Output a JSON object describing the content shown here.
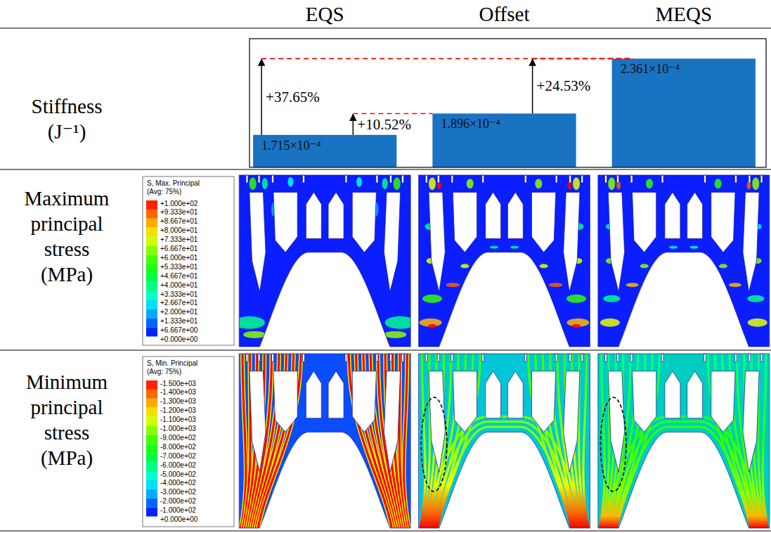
{
  "chart_data": {
    "type": "bar",
    "categories": [
      "EQS",
      "Offset",
      "MEQS"
    ],
    "values": [
      0.0001715,
      0.0001896,
      0.0002361
    ],
    "value_labels": [
      "1.715×10⁻⁴",
      "1.896×10⁻⁴",
      "2.361×10⁻⁴"
    ],
    "data_labels": true,
    "color": "#1a72c2",
    "ylim": [
      0.000144,
      0.000253
    ],
    "tick_labels": false,
    "annotations": [
      {
        "text": "+37.65%",
        "from": 0,
        "to": 2
      },
      {
        "text": "+10.52%",
        "from": 0,
        "to": 1
      },
      {
        "text": "+24.53%",
        "from": 1,
        "to": 2
      }
    ]
  },
  "row_labels": [
    [
      "Stiffness",
      "(J⁻¹)"
    ],
    [
      "Maximum",
      "principal",
      "stress",
      "(MPa)"
    ],
    [
      "Minimum",
      "principal",
      "stress",
      "(MPa)"
    ]
  ],
  "contour_legends": [
    {
      "title": [
        "S, Max. Principal",
        "(Avg: 75%)"
      ],
      "color_range": [
        0,
        100
      ],
      "ticks": [
        {
          "value": 100,
          "label": "+1.000e+02"
        },
        {
          "value": 93.33,
          "label": "+9.333e+01"
        },
        {
          "value": 86.67,
          "label": "+8.667e+01"
        },
        {
          "value": 80,
          "label": "+8.000e+01"
        },
        {
          "value": 73.33,
          "label": "+7.333e+01"
        },
        {
          "value": 66.67,
          "label": "+6.667e+01"
        },
        {
          "value": 60,
          "label": "+6.000e+01"
        },
        {
          "value": 53.33,
          "label": "+5.333e+01"
        },
        {
          "value": 46.67,
          "label": "+4.667e+01"
        },
        {
          "value": 40,
          "label": "+4.000e+01"
        },
        {
          "value": 33.33,
          "label": "+3.333e+01"
        },
        {
          "value": 26.67,
          "label": "+2.667e+01"
        },
        {
          "value": 20,
          "label": "+2.000e+01"
        },
        {
          "value": 13.33,
          "label": "+1.333e+01"
        },
        {
          "value": 6.667,
          "label": "+6.667e+00"
        },
        {
          "value": 0,
          "label": "+0.000e+00"
        }
      ]
    },
    {
      "title": [
        "S, Min. Principal",
        "(Avg: 75%)"
      ],
      "color_range": [
        0,
        -1500
      ],
      "ticks": [
        {
          "value": -1500,
          "label": "-1.500e+03"
        },
        {
          "value": -1400,
          "label": "-1.400e+03"
        },
        {
          "value": -1300,
          "label": "-1.300e+03"
        },
        {
          "value": -1200,
          "label": "-1.200e+03"
        },
        {
          "value": -1100,
          "label": "-1.100e+03"
        },
        {
          "value": -1000,
          "label": "-1.000e+03"
        },
        {
          "value": -900,
          "label": "-9.000e+02"
        },
        {
          "value": -800,
          "label": "-8.000e+02"
        },
        {
          "value": -700,
          "label": "-7.000e+02"
        },
        {
          "value": -600,
          "label": "-6.000e+02"
        },
        {
          "value": -500,
          "label": "-5.000e+02"
        },
        {
          "value": -400,
          "label": "-4.000e+02"
        },
        {
          "value": -300,
          "label": "-3.000e+02"
        },
        {
          "value": -200,
          "label": "-2.000e+02"
        },
        {
          "value": -100,
          "label": "-1.000e+02"
        },
        {
          "value": 0,
          "label": "+0.000e+00"
        }
      ]
    }
  ]
}
